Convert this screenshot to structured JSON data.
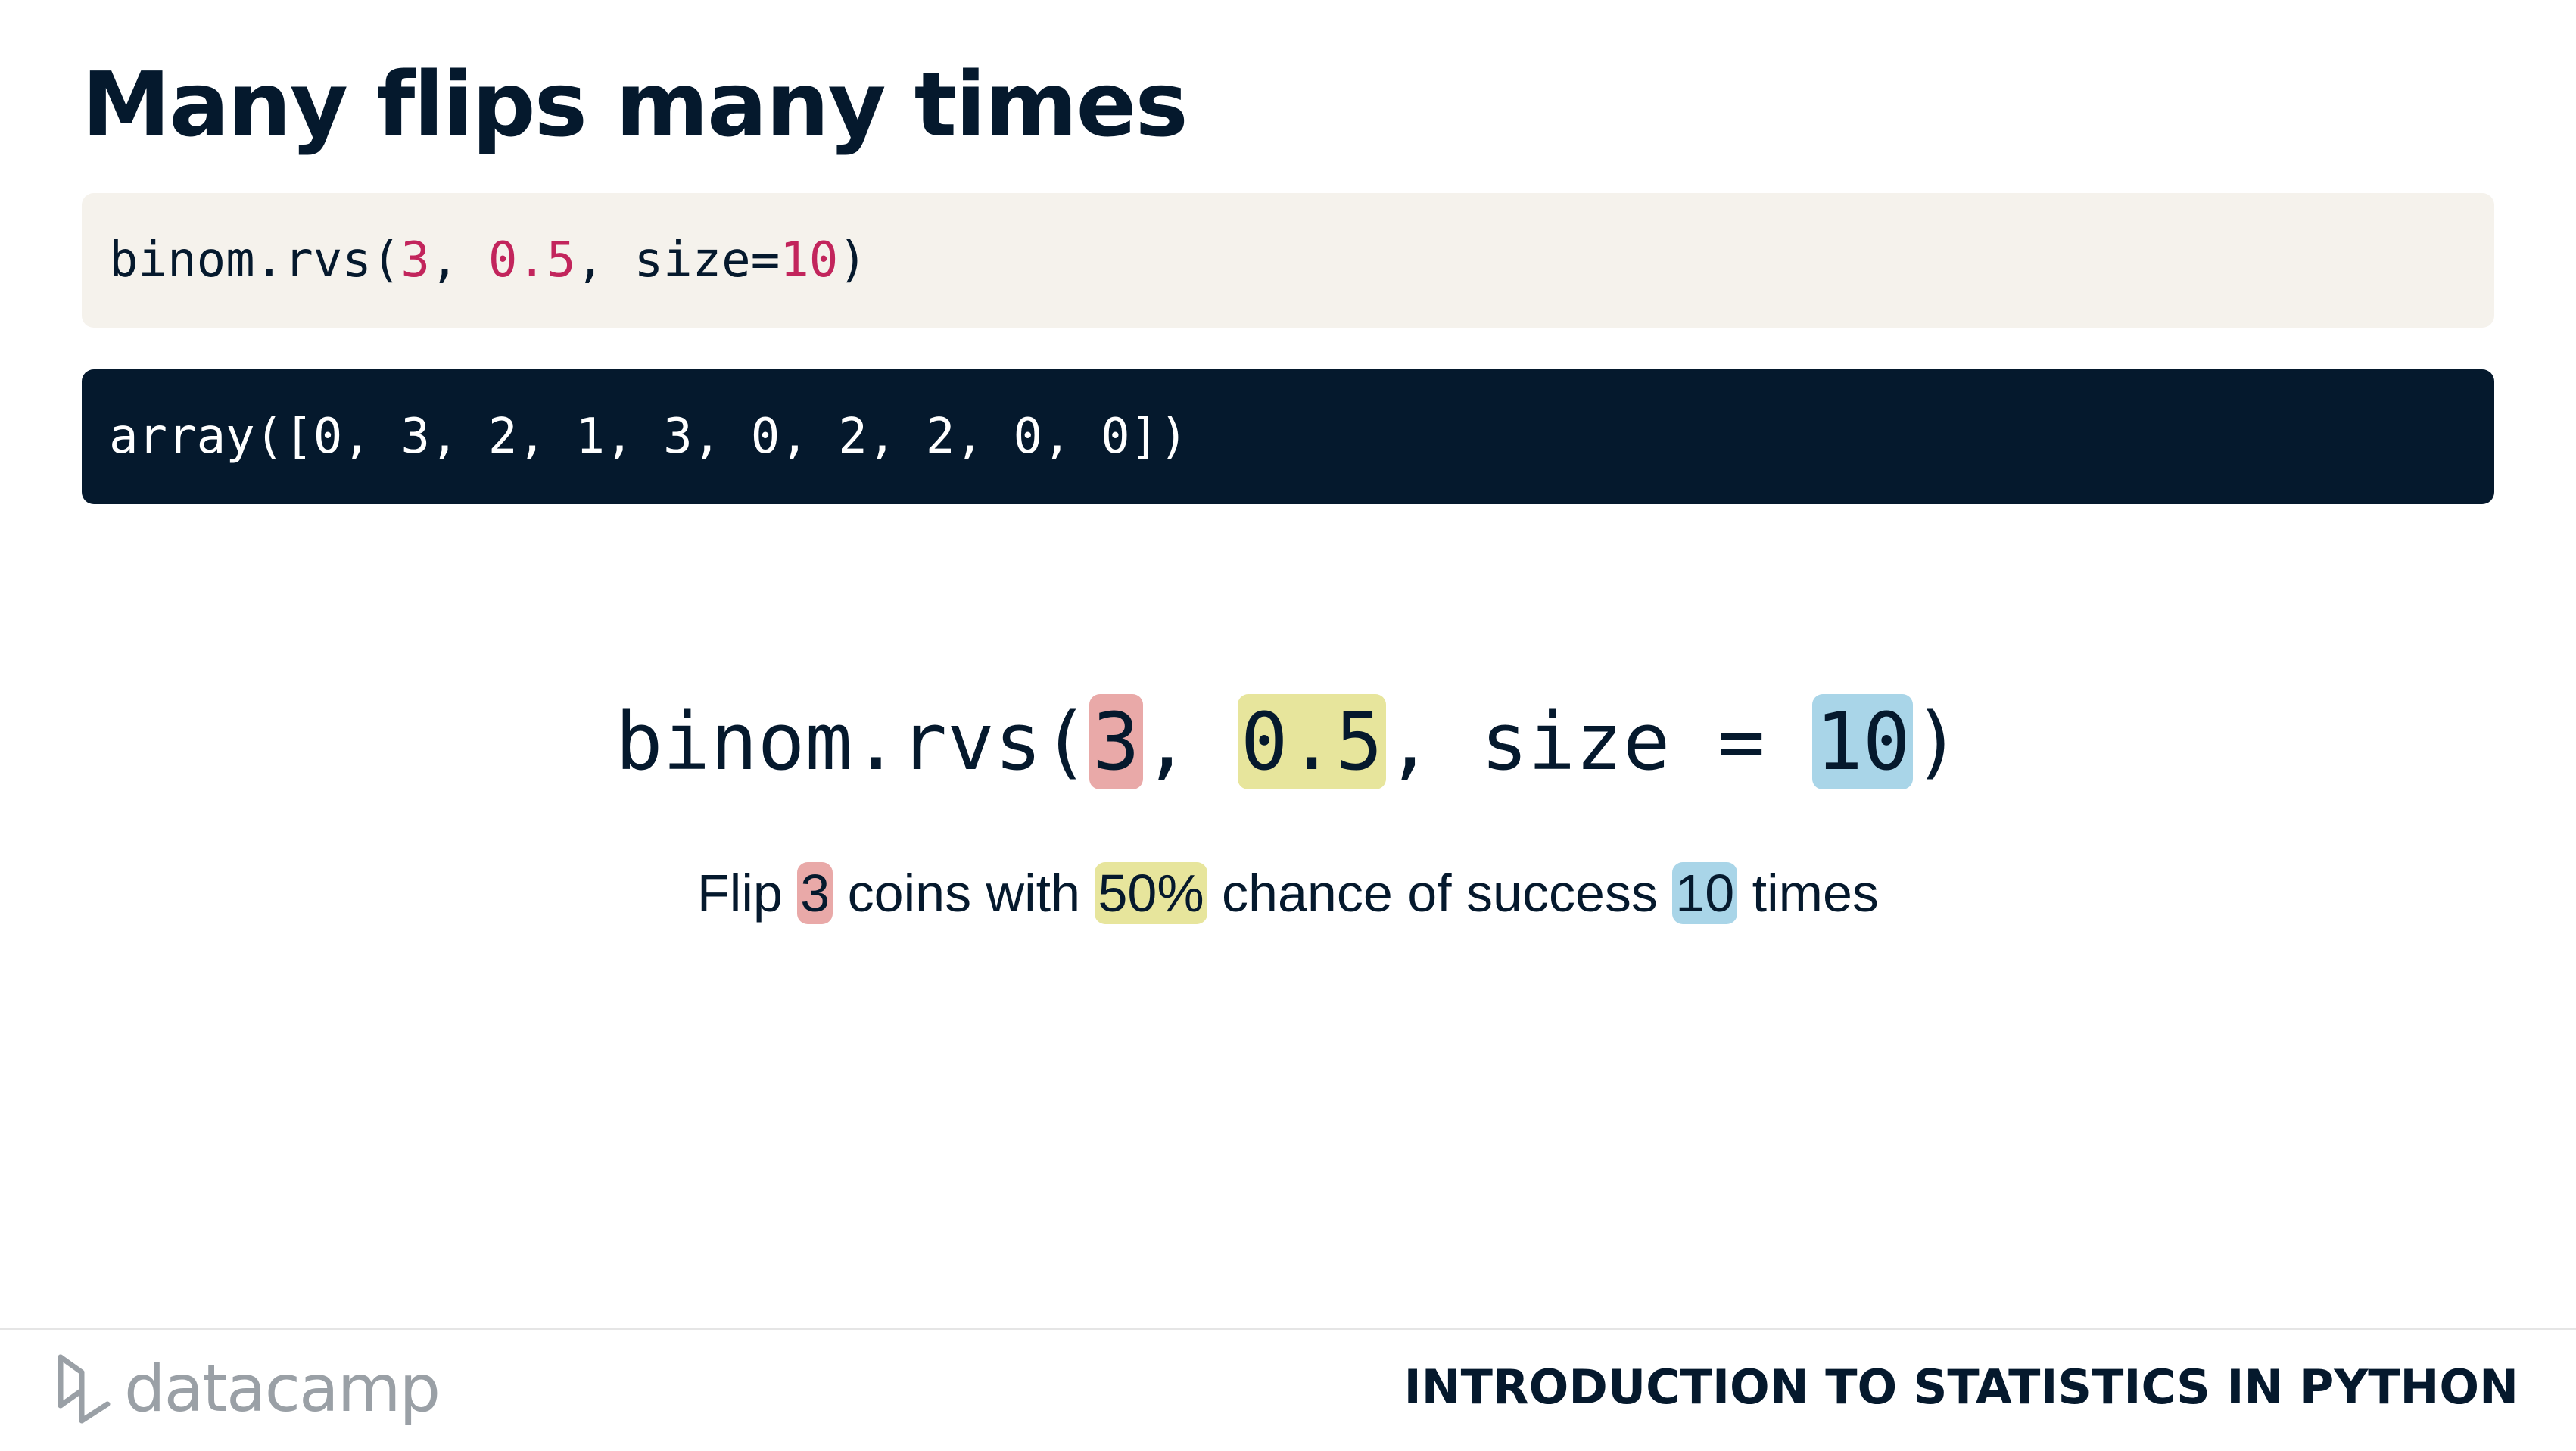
{
  "slide": {
    "title": "Many flips many times"
  },
  "code_input": {
    "prefix": "binom.rvs(",
    "arg_n": "3",
    "sep1": ", ",
    "arg_p": "0.5",
    "sep2": ", size=",
    "arg_size": "10",
    "suffix": ")"
  },
  "code_output": {
    "text": "array([0, 3, 2, 1, 3, 0, 2, 2, 0, 0])"
  },
  "annotated_code": {
    "prefix": "binom.rvs(",
    "arg_n": "3",
    "sep1": ", ",
    "arg_p": "0.5",
    "sep2": ", size = ",
    "arg_size": "10",
    "suffix": ")"
  },
  "explanation": {
    "part1": "Flip ",
    "n": "3",
    "part2": " coins with ",
    "p": "50%",
    "part3": " chance of success ",
    "size": "10",
    "part4": " times"
  },
  "highlight_colors": {
    "n": "#e9a9a8",
    "p": "#e7e59c",
    "size": "#a9d5e8"
  },
  "footer": {
    "logo_text": "datacamp",
    "course_title": "INTRODUCTION TO STATISTICS IN PYTHON"
  }
}
